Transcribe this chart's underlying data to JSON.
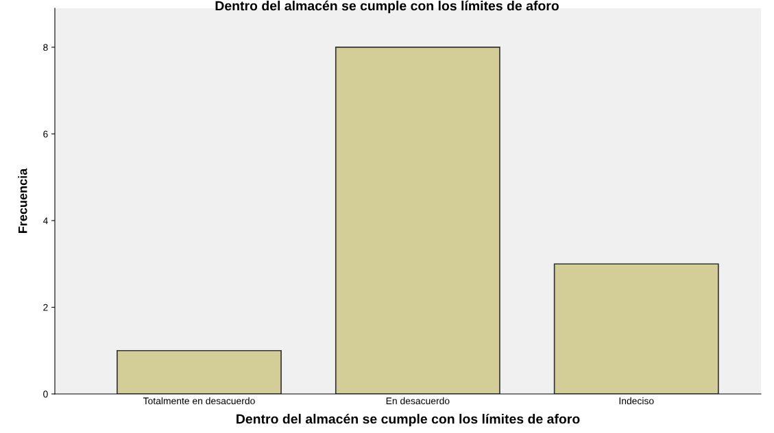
{
  "chart_data": {
    "type": "bar",
    "title": "Dentro del almacén se cumple con los límites de aforo",
    "xlabel": "Dentro del almacén se cumple con los límites de aforo",
    "ylabel": "Frecuencia",
    "categories": [
      "Totalmente en desacuerdo",
      "En desacuerdo",
      "Indeciso"
    ],
    "values": [
      1,
      8,
      3
    ],
    "color": "#d3ce97",
    "ylim": [
      0,
      8.9
    ],
    "yticks": [
      0,
      2,
      4,
      6,
      8
    ],
    "grid": false,
    "legend": false
  }
}
